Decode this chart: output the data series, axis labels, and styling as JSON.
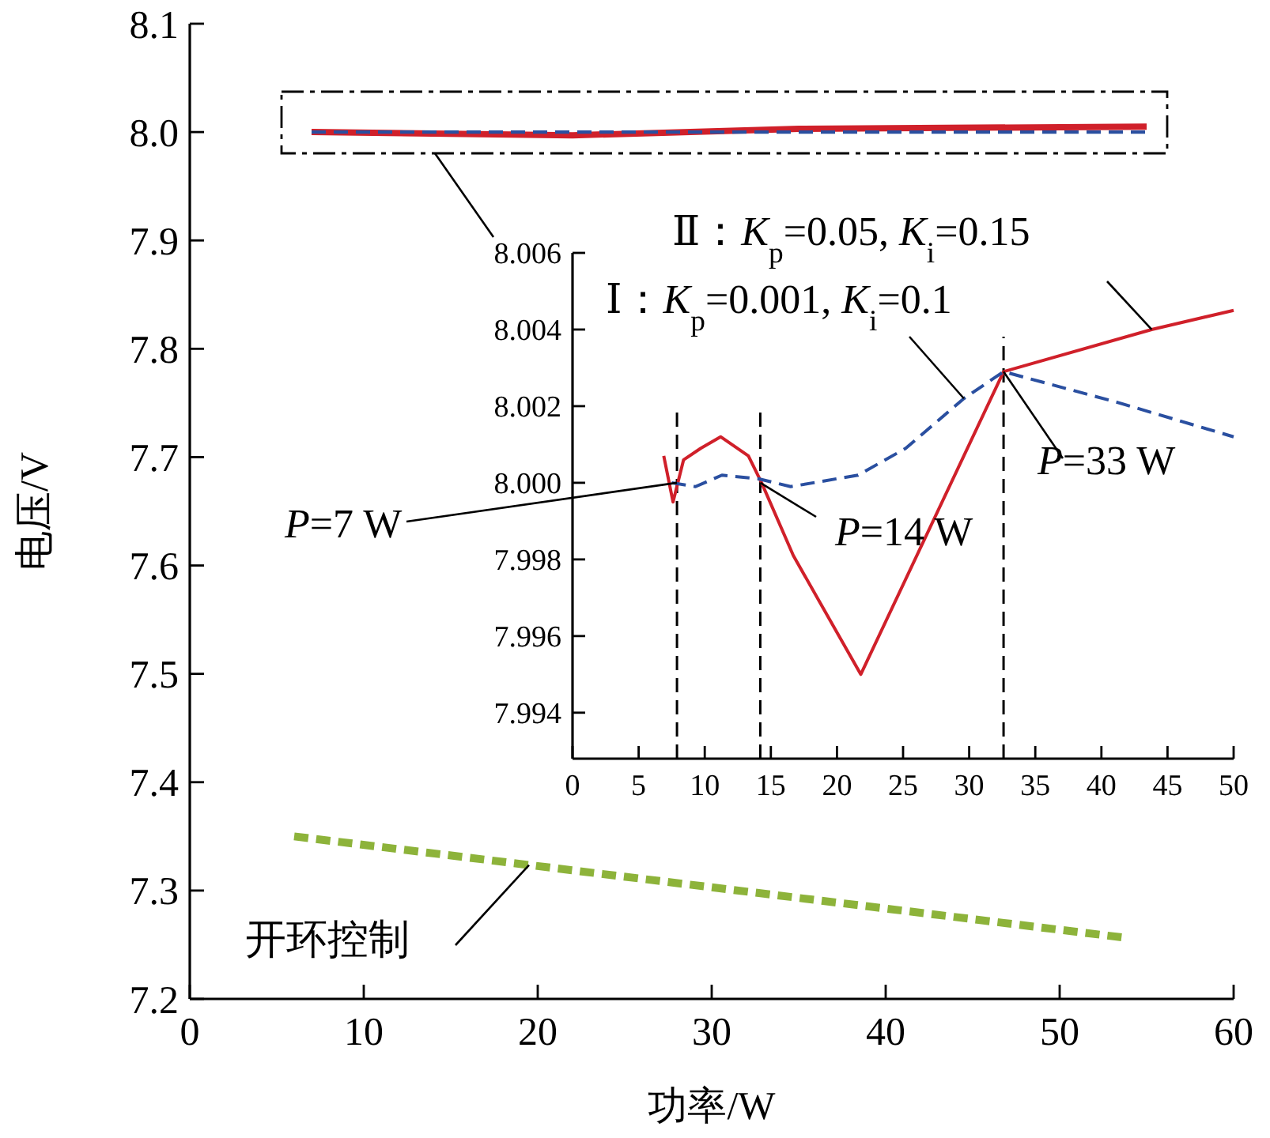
{
  "chart_data": [
    {
      "type": "line",
      "xlabel": "功率/W",
      "ylabel": "电压/V",
      "xlim": [
        0,
        60
      ],
      "ylim": [
        7.2,
        8.1
      ],
      "xticks": [
        0,
        10,
        20,
        30,
        40,
        50,
        60
      ],
      "yticks": [
        7.2,
        7.3,
        7.4,
        7.5,
        7.6,
        7.7,
        7.8,
        7.9,
        {
          "value": 8,
          "label": "8.0"
        },
        8.1
      ],
      "series": [
        {
          "color": "#d0202a",
          "line_style": "solid",
          "x": [
            7,
            22,
            35,
            55
          ],
          "values": [
            8.0,
            7.997,
            8.003,
            8.005
          ]
        },
        {
          "color": "#2a4fa0",
          "line_style": "dashed",
          "x": [
            7,
            55
          ],
          "values": [
            8.0,
            8.0
          ]
        },
        {
          "name": "开环控制",
          "color": "#8db33a",
          "line_style": "dashed",
          "x": [
            6,
            54
          ],
          "values": [
            7.35,
            7.256
          ]
        }
      ]
    },
    {
      "type": "line",
      "xlim": [
        0,
        50
      ],
      "ylim": [
        7.9928,
        8.006
      ],
      "xticks": [
        0,
        5,
        10,
        15,
        20,
        25,
        30,
        35,
        40,
        45,
        50
      ],
      "yticks": [
        7.994,
        7.996,
        7.998,
        {
          "value": 8,
          "label": "8.000"
        },
        8.002,
        8.004,
        8.006
      ],
      "series": [
        {
          "name": "Ⅱ：*K*$_{p}$=0.05, *K*$_{i}$=0.15",
          "color": "#d0202a",
          "line_style": "solid",
          "x": [
            6.9,
            7.6,
            8.4,
            9.7,
            11.2,
            13.3,
            14.3,
            16.7,
            21.8,
            32.6,
            43.8,
            50
          ],
          "values": [
            8.0007,
            7.9995,
            8.0006,
            8.0009,
            8.0012,
            8.0007,
            8.0,
            7.9981,
            7.995,
            8.0029,
            8.004,
            8.0045
          ]
        },
        {
          "name": "Ⅰ：*K*$_{p}$=0.001, *K*$_{i}$=0.1",
          "color": "#2a4fa0",
          "line_style": "dashed",
          "x": [
            7.5,
            9.3,
            11.3,
            14.1,
            16.5,
            21.6,
            25.2,
            29.6,
            32.6,
            41.2,
            50
          ],
          "values": [
            8.0,
            7.9999,
            8.0002,
            8.0001,
            7.9999,
            8.0002,
            8.0009,
            8.0022,
            8.0029,
            8.0021,
            8.0012
          ]
        }
      ],
      "ref_lines": [
        {
          "axis": "x",
          "value": 7.9,
          "color": "#000000",
          "line_style": "dashed"
        },
        {
          "axis": "x",
          "value": 14.2,
          "color": "#000000",
          "line_style": "dashed"
        },
        {
          "axis": "x",
          "value": 32.6,
          "color": "#000000",
          "line_style": "dashed"
        }
      ],
      "annotations": [
        {
          "text": "*P*=7 W",
          "x": 7.9,
          "y": 8.0
        },
        {
          "text": "*P*=14 W",
          "x": 14.2,
          "y": 8.0
        },
        {
          "text": "*P*=33 W",
          "x": 32.6,
          "y": 8.0029
        }
      ]
    }
  ]
}
